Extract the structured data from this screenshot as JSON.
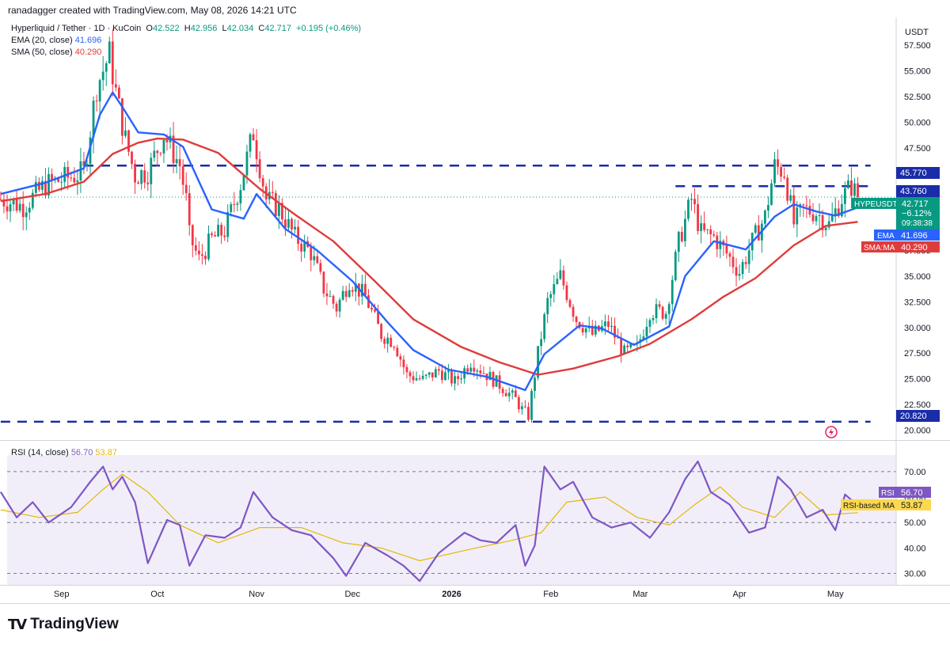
{
  "header": {
    "author_line": "ranadagger created with TradingView.com, May 08, 2026 14:21 UTC"
  },
  "legend": {
    "symbol_line": "Hyperliquid / Tether · 1D · KuCoin",
    "o_label": "O",
    "o_value": "42.522",
    "h_label": "H",
    "h_value": "42.956",
    "l_label": "L",
    "l_value": "42.034",
    "c_label": "C",
    "c_value": "42.717",
    "change": "+0.195 (+0.46%)",
    "ema_label": "EMA (20, close)",
    "ema_value": "41.696",
    "sma_label": "SMA (50, close)",
    "sma_value": "40.290",
    "rsi_label": "RSI (14, close)",
    "rsi_value": "56.70",
    "rsi_ma_value": "53.87"
  },
  "price_axis": {
    "currency": "USDT",
    "ticks": [
      "57.500",
      "55.000",
      "52.500",
      "50.000",
      "47.500",
      "45.000",
      "42.500",
      "40.000",
      "37.500",
      "35.000",
      "32.500",
      "30.000",
      "27.500",
      "25.000",
      "22.500",
      "20.000"
    ]
  },
  "rsi_axis": {
    "ticks": [
      "70.00",
      "60.00",
      "50.00",
      "40.00",
      "30.00"
    ]
  },
  "time_axis": {
    "labels": [
      "Sep",
      "Oct",
      "Nov",
      "Dec",
      "2026",
      "Feb",
      "Mar",
      "Apr",
      "May"
    ]
  },
  "badges": {
    "level_45770": "45.770",
    "level_43760": "43.760",
    "level_20820": "20.820",
    "symbol": "HYPEUSDT",
    "price": "42.717",
    "pct": "−6.12%",
    "countdown": "09:38:38",
    "ema_tag": "EMA",
    "ema_val": "41.696",
    "sma_tag": "SMA:MA",
    "sma_val": "40.290",
    "rsi_tag": "RSI",
    "rsi_val": "56.70",
    "rsima_tag": "RSI-based MA",
    "rsima_val": "53.87"
  },
  "logo": {
    "text": "TradingView"
  },
  "colors": {
    "up": "#089981",
    "down": "#f23645",
    "ema": "#2962ff",
    "sma": "#e03b3b",
    "rsi": "#7e57c2",
    "rsi_ma": "#e6b800",
    "level": "#1a2ca8"
  },
  "chart_data": {
    "type": "candlestick",
    "title": "Hyperliquid / Tether · 1D · KuCoin",
    "ylabel": "USDT",
    "ylim": [
      19.5,
      60.2
    ],
    "scale": "linear",
    "grid": false,
    "x_range": [
      "2025-08-15",
      "2026-05-20"
    ],
    "horizontal_levels": [
      45.77,
      43.76,
      20.82
    ],
    "level_spans": [
      [
        "2025-09-08",
        "2026-05-12"
      ],
      [
        "2026-03-12",
        "2026-05-12"
      ],
      [
        "2025-08-13",
        "2026-05-12"
      ]
    ],
    "price_series": {
      "dates": [
        "2025-08-13",
        "2025-08-20",
        "2025-08-27",
        "2025-09-03",
        "2025-09-08",
        "2025-09-12",
        "2025-09-16",
        "2025-09-18",
        "2025-09-21",
        "2025-09-24",
        "2025-09-28",
        "2025-10-03",
        "2025-10-08",
        "2025-10-10",
        "2025-10-11",
        "2025-10-14",
        "2025-10-18",
        "2025-10-22",
        "2025-10-27",
        "2025-10-31",
        "2025-11-04",
        "2025-11-08",
        "2025-11-13",
        "2025-11-18",
        "2025-11-22",
        "2025-11-26",
        "2025-11-30",
        "2025-12-05",
        "2025-12-10",
        "2025-12-14",
        "2025-12-18",
        "2025-12-23",
        "2025-12-28",
        "2026-01-02",
        "2026-01-07",
        "2026-01-12",
        "2026-01-16",
        "2026-01-21",
        "2026-01-23",
        "2026-01-25",
        "2026-01-28",
        "2026-01-31",
        "2026-02-04",
        "2026-02-09",
        "2026-02-14",
        "2026-02-19",
        "2026-02-24",
        "2026-02-28",
        "2026-03-04",
        "2026-03-09",
        "2026-03-13",
        "2026-03-17",
        "2026-03-20",
        "2026-03-24",
        "2026-03-28",
        "2026-04-01",
        "2026-04-05",
        "2026-04-09",
        "2026-04-12",
        "2026-04-15",
        "2026-04-18",
        "2026-04-21",
        "2026-04-25",
        "2026-04-29",
        "2026-05-03",
        "2026-05-06",
        "2026-05-08"
      ],
      "close": [
        42.5,
        41.8,
        43.9,
        44.6,
        45.1,
        53.5,
        56.6,
        52.9,
        48.3,
        44.8,
        45.2,
        48.8,
        45.8,
        42.4,
        38.9,
        36.6,
        38.6,
        39.4,
        44.0,
        49.0,
        42.5,
        41.6,
        38.8,
        37.3,
        33.8,
        31.9,
        34.6,
        33.0,
        29.3,
        28.6,
        25.4,
        24.9,
        25.8,
        24.7,
        26.7,
        25.4,
        24.4,
        23.0,
        22.0,
        21.4,
        27.5,
        32.5,
        35.0,
        30.8,
        29.3,
        30.3,
        27.5,
        28.0,
        31.6,
        31.5,
        38.3,
        42.5,
        39.2,
        38.8,
        37.2,
        35.4,
        38.3,
        40.8,
        45.7,
        45.2,
        40.1,
        41.5,
        41.2,
        40.0,
        42.6,
        43.8,
        42.7
      ]
    },
    "ema20_close": {
      "dates": [
        "2025-08-13",
        "2025-08-27",
        "2025-09-08",
        "2025-09-13",
        "2025-09-17",
        "2025-09-20",
        "2025-09-25",
        "2025-10-03",
        "2025-10-09",
        "2025-10-18",
        "2025-10-28",
        "2025-11-01",
        "2025-11-10",
        "2025-11-20",
        "2025-12-01",
        "2025-12-12",
        "2025-12-20",
        "2025-12-31",
        "2026-01-12",
        "2026-01-24",
        "2026-01-30",
        "2026-02-10",
        "2026-02-17",
        "2026-02-27",
        "2026-03-10",
        "2026-03-15",
        "2026-03-24",
        "2026-04-03",
        "2026-04-12",
        "2026-04-18",
        "2026-04-25",
        "2026-05-01",
        "2026-05-08"
      ],
      "values": [
        43.0,
        44.1,
        45.5,
        50.7,
        52.9,
        51.5,
        49.0,
        48.8,
        47.6,
        41.5,
        40.6,
        43.0,
        39.6,
        37.5,
        34.5,
        30.5,
        27.8,
        25.9,
        25.2,
        23.9,
        27.4,
        30.2,
        29.9,
        28.3,
        30.1,
        35.0,
        38.4,
        37.6,
        40.8,
        42.0,
        41.3,
        40.9,
        41.696
      ]
    },
    "sma50_close": {
      "dates": [
        "2025-08-13",
        "2025-08-27",
        "2025-09-08",
        "2025-09-17",
        "2025-09-25",
        "2025-10-01",
        "2025-10-09",
        "2025-10-20",
        "2025-11-02",
        "2025-11-13",
        "2025-11-25",
        "2025-12-08",
        "2025-12-20",
        "2026-01-04",
        "2026-01-16",
        "2026-01-28",
        "2026-02-08",
        "2026-02-22",
        "2026-03-04",
        "2026-03-17",
        "2026-03-27",
        "2026-04-06",
        "2026-04-18",
        "2026-04-28",
        "2026-05-08"
      ],
      "values": [
        42.3,
        43.0,
        44.2,
        46.9,
        48.0,
        48.4,
        48.3,
        47.0,
        43.5,
        41.0,
        38.4,
        34.5,
        30.8,
        28.1,
        26.6,
        25.4,
        26.0,
        27.2,
        28.4,
        30.8,
        33.0,
        34.8,
        38.0,
        39.9,
        40.29
      ]
    },
    "rsi14": {
      "dates": [
        "2025-08-13",
        "2025-08-18",
        "2025-08-23",
        "2025-08-28",
        "2025-09-04",
        "2025-09-10",
        "2025-09-14",
        "2025-09-17",
        "2025-09-20",
        "2025-09-24",
        "2025-09-28",
        "2025-10-04",
        "2025-10-08",
        "2025-10-11",
        "2025-10-16",
        "2025-10-22",
        "2025-10-27",
        "2025-10-31",
        "2025-11-06",
        "2025-11-12",
        "2025-11-18",
        "2025-11-25",
        "2025-11-29",
        "2025-12-05",
        "2025-12-12",
        "2025-12-17",
        "2025-12-22",
        "2025-12-28",
        "2026-01-05",
        "2026-01-10",
        "2026-01-15",
        "2026-01-21",
        "2026-01-24",
        "2026-01-27",
        "2026-01-30",
        "2026-02-04",
        "2026-02-08",
        "2026-02-14",
        "2026-02-20",
        "2026-02-26",
        "2026-03-04",
        "2026-03-10",
        "2026-03-15",
        "2026-03-19",
        "2026-03-23",
        "2026-03-29",
        "2026-04-04",
        "2026-04-09",
        "2026-04-13",
        "2026-04-17",
        "2026-04-22",
        "2026-04-27",
        "2026-05-01",
        "2026-05-04",
        "2026-05-08"
      ],
      "values": [
        62,
        52,
        58,
        50,
        56,
        66,
        72,
        63,
        68,
        58,
        34,
        51,
        49,
        33,
        45,
        44,
        48,
        62,
        52,
        47,
        45,
        36,
        29,
        42,
        37,
        33,
        27,
        38,
        46,
        43,
        42,
        49,
        33,
        41,
        72,
        63,
        66,
        52,
        48,
        50,
        44,
        54,
        67,
        74,
        62,
        57,
        46,
        48,
        68,
        63,
        52,
        55,
        47,
        61,
        56.7
      ]
    },
    "rsi_ma": {
      "dates": [
        "2025-08-13",
        "2025-08-25",
        "2025-09-06",
        "2025-09-14",
        "2025-09-20",
        "2025-09-28",
        "2025-10-08",
        "2025-10-20",
        "2025-11-02",
        "2025-11-15",
        "2025-11-28",
        "2025-12-10",
        "2025-12-22",
        "2026-01-05",
        "2026-01-20",
        "2026-01-29",
        "2026-02-06",
        "2026-02-18",
        "2026-02-28",
        "2026-03-10",
        "2026-03-18",
        "2026-03-26",
        "2026-04-02",
        "2026-04-12",
        "2026-04-20",
        "2026-04-28",
        "2026-05-08"
      ],
      "values": [
        55,
        52,
        54,
        63,
        69,
        62,
        49,
        42,
        48,
        48,
        42,
        40,
        35,
        39,
        43,
        46,
        58,
        60,
        52,
        49,
        57,
        64,
        56,
        52,
        62,
        53,
        53.87
      ]
    },
    "rsi_ylim": [
      25.5,
      76.5
    ],
    "rsi_levels": [
      70,
      50,
      30
    ]
  }
}
